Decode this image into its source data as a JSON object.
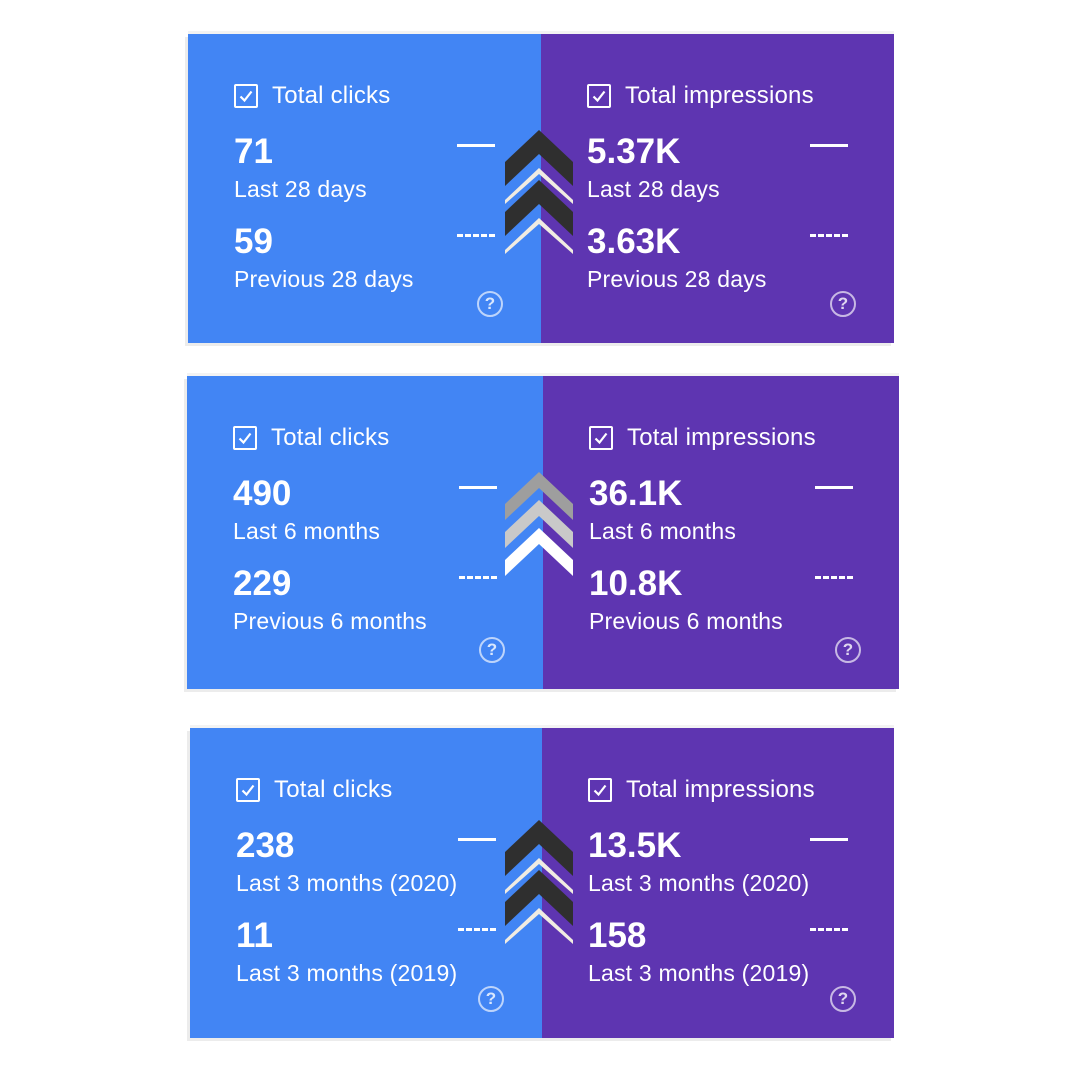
{
  "panels": [
    {
      "clicks": {
        "title": "Total clicks",
        "current_value": "71",
        "current_period": "Last 28 days",
        "previous_value": "59",
        "previous_period": "Previous 28 days"
      },
      "impressions": {
        "title": "Total impressions",
        "current_value": "5.37K",
        "current_period": "Last 28 days",
        "previous_value": "3.63K",
        "previous_period": "Previous 28 days"
      },
      "trend_icon": "double-chevron-up-dark"
    },
    {
      "clicks": {
        "title": "Total clicks",
        "current_value": "490",
        "current_period": "Last 6 months",
        "previous_value": "229",
        "previous_period": "Previous 6 months"
      },
      "impressions": {
        "title": "Total impressions",
        "current_value": "36.1K",
        "current_period": "Last 6 months",
        "previous_value": "10.8K",
        "previous_period": "Previous 6 months"
      },
      "trend_icon": "triple-chevron-up-light"
    },
    {
      "clicks": {
        "title": "Total clicks",
        "current_value": "238",
        "current_period": "Last 3 months (2020)",
        "previous_value": "11",
        "previous_period": "Last 3 months (2019)"
      },
      "impressions": {
        "title": "Total impressions",
        "current_value": "13.5K",
        "current_period": "Last 3 months (2020)",
        "previous_value": "158",
        "previous_period": "Last 3 months (2019)"
      },
      "trend_icon": "double-chevron-up-dark"
    }
  ],
  "help_glyph": "?",
  "colors": {
    "clicks_bg": "#4285f4",
    "impressions_bg": "#5e35b1",
    "text": "#ffffff",
    "chevron_dark": "#2f2f2f",
    "chevron_light": "#f1ece2",
    "chevron_gray": "#9e9e9e",
    "chevron_silver": "#c9c9c9"
  }
}
